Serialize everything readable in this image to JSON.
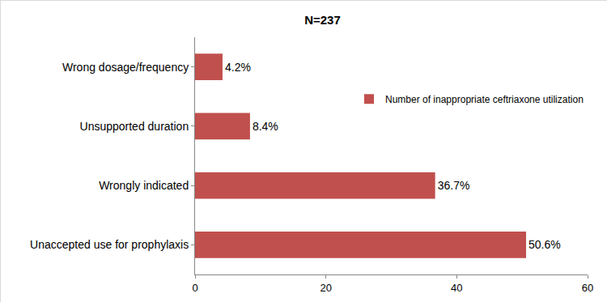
{
  "chart_data": {
    "type": "bar",
    "title": "N=237",
    "orientation": "horizontal",
    "categories": [
      "Unaccepted use for prophylaxis",
      "Wrongly indicated",
      "Unsupported duration",
      "Wrong dosage/frequency"
    ],
    "series": [
      {
        "name": "Number of inappropriate ceftriaxone utilization",
        "color": "#c0504d",
        "values": [
          50.6,
          36.7,
          8.4,
          4.2
        ],
        "value_labels": [
          "50.6%",
          "36.7%",
          "8.4%",
          "4.2%"
        ]
      }
    ],
    "xlim": [
      0,
      60
    ],
    "xticks": [
      0,
      20,
      40,
      60
    ],
    "grid": false,
    "data_labels": true,
    "legend": "right"
  }
}
